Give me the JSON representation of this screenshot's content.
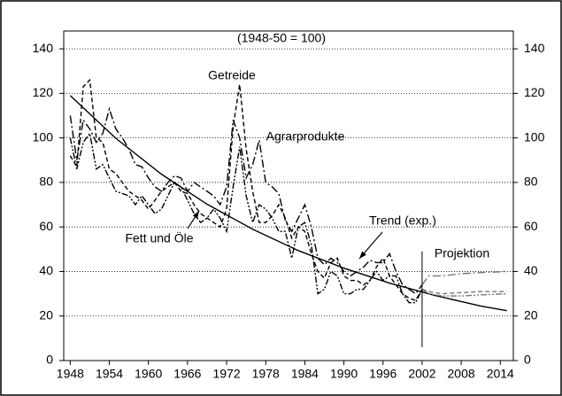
{
  "chart_data": {
    "type": "line",
    "title": "(1948-50 = 100)",
    "annotation": "Projektion",
    "x": [
      1948,
      1949,
      1950,
      1951,
      1952,
      1953,
      1954,
      1955,
      1956,
      1957,
      1958,
      1959,
      1960,
      1961,
      1962,
      1963,
      1964,
      1965,
      1966,
      1967,
      1968,
      1969,
      1970,
      1971,
      1972,
      1973,
      1974,
      1975,
      1976,
      1977,
      1978,
      1979,
      1980,
      1981,
      1982,
      1983,
      1984,
      1985,
      1986,
      1987,
      1988,
      1989,
      1990,
      1991,
      1992,
      1993,
      1994,
      1995,
      1996,
      1997,
      1998,
      1999,
      2000,
      2001,
      2002
    ],
    "series": [
      {
        "name": "Getreide",
        "color": "#000000",
        "dash": "dashed",
        "values": [
          92,
          87,
          123,
          126,
          100,
          98,
          86,
          84,
          80,
          76,
          74,
          72,
          68,
          72,
          76,
          78,
          80,
          76,
          75,
          70,
          66,
          64,
          62,
          60,
          68,
          105,
          124,
          95,
          76,
          62,
          62,
          65,
          70,
          64,
          55,
          60,
          58,
          48,
          40,
          37,
          44,
          46,
          38,
          36,
          36,
          34,
          36,
          42,
          46,
          38,
          34,
          30,
          28,
          27,
          32
        ]
      },
      {
        "name": "Agrarprodukte",
        "color": "#000000",
        "dash": "dash-dot",
        "values": [
          110,
          90,
          108,
          104,
          98,
          102,
          113,
          104,
          100,
          95,
          88,
          87,
          82,
          78,
          76,
          80,
          83,
          82,
          76,
          80,
          78,
          76,
          74,
          70,
          78,
          108,
          100,
          82,
          88,
          99,
          80,
          78,
          75,
          63,
          58,
          64,
          70,
          60,
          46,
          43,
          46,
          44,
          40,
          38,
          40,
          42,
          45,
          44,
          44,
          48,
          40,
          34,
          32,
          30,
          34
        ]
      },
      {
        "name": "Fett und Öle",
        "color": "#000000",
        "dash": "dash-dot-dot",
        "values": [
          100,
          86,
          98,
          102,
          86,
          88,
          82,
          76,
          75,
          74,
          70,
          74,
          70,
          66,
          68,
          74,
          80,
          78,
          72,
          66,
          62,
          64,
          68,
          64,
          58,
          78,
          96,
          74,
          62,
          70,
          68,
          64,
          58,
          58,
          46,
          60,
          62,
          52,
          30,
          32,
          40,
          38,
          30,
          30,
          32,
          32,
          36,
          40,
          36,
          38,
          38,
          30,
          26,
          26,
          32
        ]
      },
      {
        "name": "Trend (exp.)",
        "color": "#000000",
        "dash": "solid",
        "x": [
          1948,
          1955,
          1962,
          1969,
          1976,
          1983,
          1990,
          1997,
          2004,
          2011,
          2015
        ],
        "values": [
          119,
          99.8,
          83.7,
          70.2,
          59,
          49.4,
          41.5,
          34.8,
          29.2,
          24.5,
          22.4
        ]
      },
      {
        "color": "#777777",
        "dash": "dash-dot",
        "x": [
          2002,
          2003,
          2005,
          2008,
          2011,
          2015
        ],
        "values": [
          34,
          38,
          38,
          39,
          39.5,
          40
        ]
      },
      {
        "color": "#777777",
        "dash": "dashed",
        "x": [
          2002,
          2003,
          2005,
          2008,
          2011,
          2015
        ],
        "values": [
          32,
          31,
          30,
          30.5,
          31,
          31
        ]
      },
      {
        "color": "#777777",
        "dash": "dash-dot-dot",
        "x": [
          2002,
          2003,
          2005,
          2008,
          2011,
          2015
        ],
        "values": [
          32,
          30,
          29,
          29,
          29.5,
          30
        ]
      }
    ],
    "projection_line": {
      "x": 2002,
      "y": [
        6,
        49
      ]
    },
    "xlim": [
      1947,
      2016
    ],
    "xticks": [
      1948,
      1954,
      1960,
      1966,
      1972,
      1978,
      1984,
      1990,
      1996,
      2002,
      2008,
      2014
    ],
    "ylim": [
      0,
      148
    ],
    "yticks": [
      0,
      20,
      40,
      60,
      80,
      100,
      120,
      140
    ],
    "y2lim": [
      0,
      148
    ],
    "y2ticks": [
      0,
      20,
      40,
      60,
      80,
      100,
      120,
      140
    ],
    "grid": true
  }
}
